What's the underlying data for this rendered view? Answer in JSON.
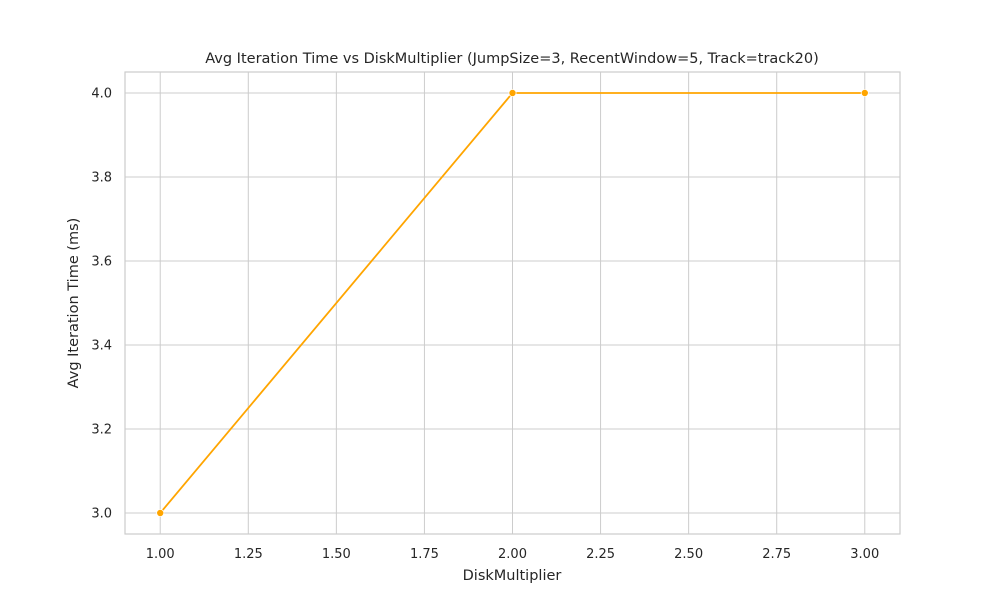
{
  "chart_data": {
    "type": "line",
    "title": "Avg Iteration Time vs DiskMultiplier (JumpSize=3, RecentWindow=5, Track=track20)",
    "xlabel": "DiskMultiplier",
    "ylabel": "Avg Iteration Time (ms)",
    "xlim": [
      0.9,
      3.1
    ],
    "ylim": [
      2.95,
      4.05
    ],
    "x_ticks": [
      1.0,
      1.25,
      1.5,
      1.75,
      2.0,
      2.25,
      2.5,
      2.75,
      3.0
    ],
    "x_tick_labels": [
      "1.00",
      "1.25",
      "1.50",
      "1.75",
      "2.00",
      "2.25",
      "2.50",
      "2.75",
      "3.00"
    ],
    "y_ticks": [
      3.0,
      3.2,
      3.4,
      3.6,
      3.8,
      4.0
    ],
    "y_tick_labels": [
      "3.0",
      "3.2",
      "3.4",
      "3.6",
      "3.8",
      "4.0"
    ],
    "grid": true,
    "series": [
      {
        "color": "#ffa500",
        "x": [
          1.0,
          2.0,
          3.0
        ],
        "y": [
          3.0,
          4.0,
          4.0
        ]
      }
    ]
  }
}
